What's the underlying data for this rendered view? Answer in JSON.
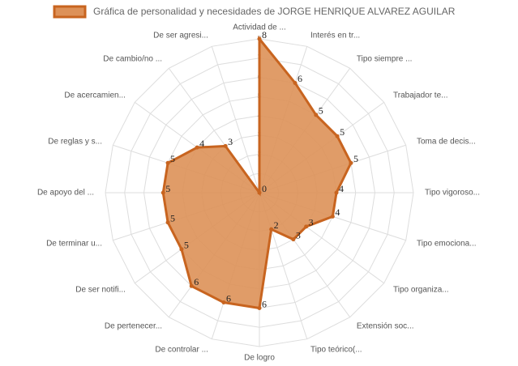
{
  "chart_data": {
    "type": "radar",
    "categories": [
      "Actividad de ...",
      "Interés en tr...",
      "Tipo siempre ...",
      "Trabajador te...",
      "Toma de decis...",
      "Tipo vigoroso...",
      "Tipo emociona...",
      "Tipo organiza...",
      "Extensión soc...",
      "Tipo teórico(...",
      "De logro",
      "De controlar ...",
      "De pertenecer...",
      "De ser notifi...",
      "De terminar u...",
      "De apoyo del ...",
      "De reglas y s...",
      "De acercamien...",
      "De cambio/no ...",
      "De ser agresi..."
    ],
    "series": [
      {
        "name": "Gráfica de personalidad y necesidades de JORGE HENRIQUE ALVAREZ AGUILAR",
        "color": "#c8641f",
        "fill": "#dd9158",
        "values": [
          8,
          6,
          5,
          5,
          5,
          4,
          4,
          3,
          3,
          2,
          6,
          6,
          6,
          5,
          5,
          5,
          5,
          4,
          3,
          0
        ]
      }
    ],
    "rlim": [
      0,
      8
    ],
    "rticks": [
      0,
      1,
      2,
      3,
      4,
      5,
      6,
      7,
      8
    ],
    "grid": true,
    "legend": "top"
  }
}
